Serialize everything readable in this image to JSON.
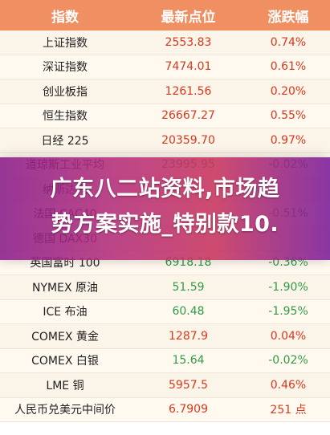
{
  "header": {
    "col_name": "指数",
    "col_price": "最新点位",
    "col_change": "涨跌幅"
  },
  "rows": [
    {
      "name": "上证指数",
      "price": "2553.83",
      "change": "0.74%",
      "direction": "up"
    },
    {
      "name": "深证指数",
      "price": "7474.01",
      "change": "0.61%",
      "direction": "up"
    },
    {
      "name": "创业板指",
      "price": "1261.56",
      "change": "0.20%",
      "direction": "up"
    },
    {
      "name": "恒生指数",
      "price": "26667.27",
      "change": "0.55%",
      "direction": "up"
    },
    {
      "name": "日经 225",
      "price": "20359.70",
      "change": "0.97%",
      "direction": "up"
    },
    {
      "name": "道琼斯工业平均",
      "price": "23995.95",
      "change": "-0.02%",
      "direction": "down"
    },
    {
      "name": "纳斯达克",
      "price": "",
      "change": "",
      "direction": "down"
    },
    {
      "name": "法国 CAC40",
      "price": "",
      "change": "-0.51%",
      "direction": "down"
    },
    {
      "name": "德国 DAX30",
      "price": "",
      "change": "",
      "direction": "down"
    },
    {
      "name": "英国富时 100",
      "price": "6918.18",
      "change": "-0.36%",
      "direction": "down"
    },
    {
      "name": "NYMEX 原油",
      "price": "51.59",
      "change": "-1.90%",
      "direction": "down"
    },
    {
      "name": "ICE 布油",
      "price": "60.48",
      "change": "-1.95%",
      "direction": "down"
    },
    {
      "name": "COMEX 黄金",
      "price": "1287.9",
      "change": "0.04%",
      "direction": "up"
    },
    {
      "name": "COMEX 白银",
      "price": "15.64",
      "change": "-0.02%",
      "direction": "down"
    },
    {
      "name": "LME 铜",
      "price": "5957.5",
      "change": "0.46%",
      "direction": "up"
    },
    {
      "name": "人民币兑美元中间价",
      "price": "6.7909",
      "change": "251 点",
      "direction": "up"
    }
  ],
  "banner": {
    "line1": "广东八二站资料,市场趋",
    "line2": "势方案实施_特别款10."
  },
  "colors": {
    "header_bg": "#ef8f62",
    "up": "#d9381e",
    "down": "#2f9b44"
  }
}
